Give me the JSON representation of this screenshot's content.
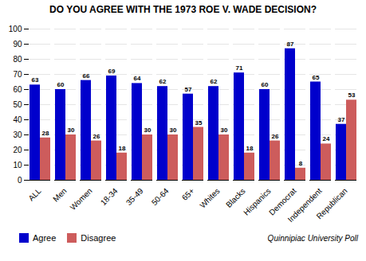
{
  "chart_data": {
    "type": "bar",
    "title": "DO YOU AGREE WITH THE 1973 ROE V. WADE DECISION?",
    "categories": [
      "ALL",
      "Men",
      "Women",
      "18-34",
      "35-49",
      "50-64",
      "65+",
      "Whites",
      "Blacks",
      "Hispanics",
      "Democrat",
      "Independent",
      "Republican"
    ],
    "series": [
      {
        "name": "Agree",
        "color": "#0000cc",
        "values": [
          63,
          60,
          66,
          69,
          64,
          62,
          57,
          62,
          71,
          60,
          87,
          65,
          37
        ]
      },
      {
        "name": "Disagree",
        "color": "#cd5c5c",
        "values": [
          28,
          30,
          26,
          18,
          30,
          30,
          35,
          30,
          18,
          26,
          8,
          24,
          53
        ]
      }
    ],
    "ylim": [
      0,
      100
    ],
    "yticks": [
      0,
      10,
      20,
      30,
      40,
      50,
      60,
      70,
      80,
      90,
      100
    ],
    "grid": true,
    "data_labels": true,
    "legend": "lower left",
    "annotations": [
      "Quinnipiac University Poll"
    ]
  }
}
